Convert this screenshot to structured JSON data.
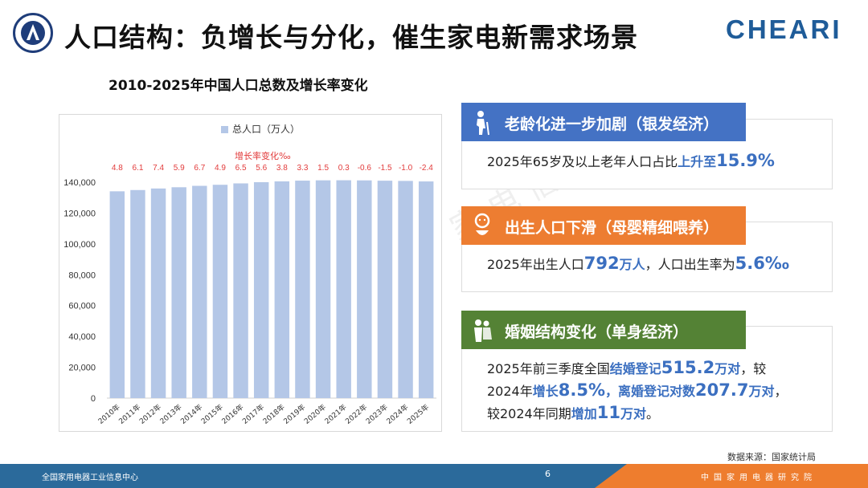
{
  "header": {
    "title": "人口结构：负增长与分化，催生家电新需求场景",
    "brand": "CHEARI",
    "logo_icon": "emblem-icon"
  },
  "chart_title": "2010-2025年中国人口总数及增长率变化",
  "chart_data": {
    "type": "bar",
    "categories": [
      "2010年",
      "2011年",
      "2012年",
      "2013年",
      "2014年",
      "2015年",
      "2016年",
      "2017年",
      "2018年",
      "2019年",
      "2020年",
      "2021年",
      "2022年",
      "2023年",
      "2024年",
      "2025年"
    ],
    "series": [
      {
        "name": "总人口（万人）",
        "values": [
          134091,
          134916,
          135922,
          136726,
          137646,
          138326,
          139232,
          140011,
          140541,
          141008,
          141212,
          141260,
          141175,
          140967,
          140828,
          140489
        ],
        "color": "#b4c7e7"
      }
    ],
    "rate_title": "增长率变化‰",
    "rate_labels": [
      "4.8",
      "6.1",
      "7.4",
      "5.9",
      "6.7",
      "4.9",
      "6.5",
      "5.6",
      "3.8",
      "3.3",
      "1.5",
      "0.3",
      "-0.6",
      "-1.5",
      "-1.0",
      "-2.4"
    ],
    "rate_color": "#e23b3b",
    "ylim": [
      0,
      140000
    ],
    "yticks": [
      "0",
      "20,000",
      "40,000",
      "60,000",
      "80,000",
      "100,000",
      "120,000",
      "140,000"
    ],
    "legend_position": "top-center",
    "grid": false
  },
  "panels": [
    {
      "banner": "老龄化进一步加剧（银发经济）",
      "color": "#4472c4",
      "icon": "elderly-person-icon",
      "line1_a": "2025年65岁及以上老年人口占比",
      "line1_b": "上升至",
      "line1_c": "15.9%"
    },
    {
      "banner": "出生人口下滑（母婴精细喂养）",
      "color": "#ed7d31",
      "icon": "baby-icon",
      "line1_a": "2025年出生人口",
      "line1_b": "792",
      "line1_c": "万人",
      "line1_d": "，人口出生率为",
      "line1_e": "5.6‰"
    },
    {
      "banner": "婚姻结构变化（单身经济）",
      "color": "#548235",
      "icon": "couple-icon",
      "l1_a": "2025年前三季度全国",
      "l1_b": "结婚登记",
      "l1_c": "515.2",
      "l1_d": "万对",
      "l1_e": "，较",
      "l2_a": "2024年",
      "l2_b": "增长",
      "l2_c": "8.5%",
      "l2_d": "，离婚登记对数",
      "l2_e": "207.7",
      "l2_f": "万对",
      "l2_g": "，",
      "l3_a": "较2024年同期",
      "l3_b": "增加",
      "l3_c": "11",
      "l3_d": "万对",
      "l3_e": "。"
    }
  ],
  "source": "数据来源：国家统计局",
  "footer": {
    "left": "全国家用电器工业信息中心",
    "page": "6",
    "right": "中国家用电器研究院"
  }
}
